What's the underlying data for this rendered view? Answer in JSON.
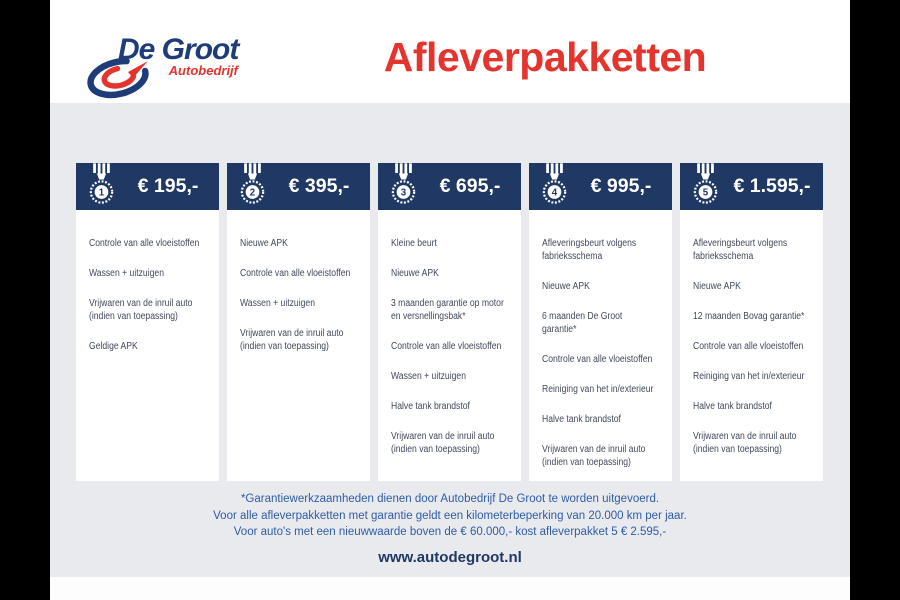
{
  "header": {
    "logo": {
      "name": "De Groot",
      "subtitle": "Autobedrijf"
    },
    "title": "Afleverpakketten"
  },
  "cards": [
    {
      "number": "1",
      "price": "€ 195,-",
      "items": [
        "Controle van alle vloeistoffen",
        "Wassen + uitzuigen",
        "Vrijwaren van de inruil auto (indien van toepassing)",
        "Geldige APK"
      ]
    },
    {
      "number": "2",
      "price": "€ 395,-",
      "items": [
        "Nieuwe APK",
        "Controle van alle vloeistoffen",
        "Wassen + uitzuigen",
        "Vrijwaren van de inruil auto (indien van toepassing)"
      ]
    },
    {
      "number": "3",
      "price": "€ 695,-",
      "items": [
        "Kleine beurt",
        "Nieuwe APK",
        "3 maanden garantie op motor en versnellingsbak*",
        "Controle van alle vloeistoffen",
        "Wassen + uitzuigen",
        "Halve tank brandstof",
        "Vrijwaren van de inruil auto (indien van toepassing)"
      ]
    },
    {
      "number": "4",
      "price": "€ 995,-",
      "items": [
        "Afleveringsbeurt volgens fabrieksschema",
        "Nieuwe APK",
        "6 maanden De Groot garantie*",
        "Controle van alle vloeistoffen",
        "Reiniging van het in/exterieur",
        "Halve tank brandstof",
        "Vrijwaren van de inruil auto (indien van toepassing)"
      ]
    },
    {
      "number": "5",
      "price": "€ 1.595,-",
      "items": [
        "Afleveringsbeurt volgens fabrieksschema",
        "Nieuwe APK",
        "12 maanden Bovag garantie*",
        "Controle van alle vloeistoffen",
        "Reiniging van het in/exterieur",
        "Halve tank brandstof",
        "Vrijwaren van de inruil auto (indien van toepassing)"
      ]
    }
  ],
  "footnote": {
    "lines": [
      "*Garantiewerkzaamheden dienen door Autobedrijf De Groot te worden uitgevoerd.",
      "Voor alle afleverpakketten met garantie geldt een kilometerbeperking van 20.000 km per jaar.",
      "Voor auto's met een nieuwwaarde boven de € 60.000,- kost afleverpakket 5 € 2.595,-"
    ]
  },
  "website": "www.autodegroot.nl",
  "colors": {
    "navy": "#1f3864",
    "logo_blue": "#1d3c78",
    "red": "#e5332e",
    "background_gray": "#e9eaee",
    "feature_text": "#40485a",
    "footnote_blue": "#2e5ca6",
    "letterbox_black": "#000000"
  }
}
